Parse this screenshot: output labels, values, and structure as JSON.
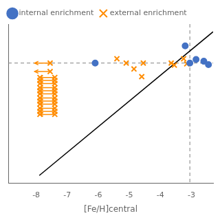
{
  "chart_data": {
    "type": "scatter",
    "xlabel": "[Fe/H]central",
    "xlim": [
      -8.9,
      -2.3
    ],
    "xticks": [
      -8,
      -7,
      -6,
      -5,
      -4,
      -3
    ],
    "ylim": [
      -8.2,
      -2.0
    ],
    "tick_labels": "x",
    "grid": false,
    "legend": "upper left",
    "reference_lines": [
      {
        "x": -3.05,
        "color": "gray",
        "line_style": "dashed"
      },
      {
        "y": -3.52,
        "color": "gray",
        "line_style": "dashed"
      }
    ],
    "series": [
      {
        "name": "internal enrichment",
        "type": "scatter",
        "marker": "circle",
        "color": "#4472C4",
        "x": [
          -6.1,
          -3.2,
          -3.05,
          -2.85,
          -2.6,
          -2.45
        ],
        "values": [
          -3.52,
          -2.85,
          -3.52,
          -3.38,
          -3.45,
          -3.58
        ]
      },
      {
        "name": "external enrichment",
        "type": "scatter",
        "marker": "x",
        "color": "#FF8C00",
        "x": [
          -5.4,
          -5.1,
          -4.85,
          -4.6,
          -4.55,
          -3.65,
          -3.55,
          -3.25,
          -3.15
        ],
        "values": [
          -3.35,
          -3.52,
          -3.75,
          -4.05,
          -3.52,
          -3.52,
          -3.6,
          -3.35,
          -3.55
        ]
      },
      {
        "type": "line",
        "color": "black",
        "line_style": "solid",
        "x": [
          -7.9,
          -2.3
        ],
        "values": [
          -7.9,
          -2.3
        ]
      },
      {
        "type": "arrow",
        "color": "#FF8C00",
        "x_start": [
          -7.55,
          -7.55,
          -7.4,
          -7.4,
          -7.4,
          -7.4,
          -7.4,
          -7.4,
          -7.4,
          -7.4,
          -7.4,
          -7.4,
          -7.4,
          -7.4
        ],
        "x_end": [
          -8.05,
          -8.05,
          -7.9,
          -7.9,
          -7.9,
          -7.9,
          -7.9,
          -7.9,
          -7.9,
          -7.9,
          -7.9,
          -7.9,
          -7.9,
          -7.9
        ],
        "values": [
          -3.52,
          -3.85,
          -4.32,
          -4.2,
          -4.08,
          -4.72,
          -4.6,
          -4.48,
          -5.12,
          -5.0,
          -4.88,
          -5.52,
          -5.4,
          -5.28
        ]
      },
      {
        "type": "scatter",
        "marker": "x",
        "color": "#FF8C00",
        "x": [
          -7.55,
          -7.55,
          -7.4,
          -7.88,
          -7.4,
          -7.88,
          -7.4,
          -7.88,
          -7.4,
          -7.88,
          -7.4,
          -7.88,
          -7.4,
          -7.88,
          -7.4,
          -7.88,
          -7.4,
          -7.88,
          -7.4,
          -7.88,
          -7.4,
          -7.88,
          -7.4,
          -7.88,
          -7.4,
          -7.88
        ],
        "values": [
          -3.52,
          -3.85,
          -4.32,
          -4.32,
          -4.2,
          -4.2,
          -4.08,
          -4.08,
          -4.72,
          -4.72,
          -4.6,
          -4.6,
          -4.48,
          -4.48,
          -5.12,
          -5.12,
          -5.0,
          -5.0,
          -4.88,
          -4.88,
          -5.52,
          -5.52,
          -5.4,
          -5.4,
          -5.28,
          -5.28
        ]
      }
    ]
  }
}
